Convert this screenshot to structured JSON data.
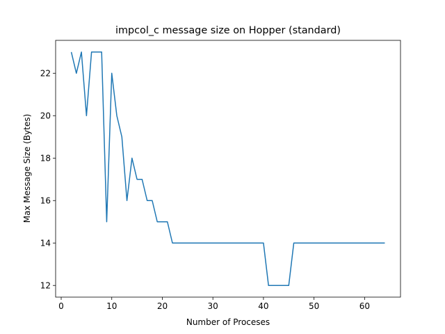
{
  "chart_data": {
    "type": "line",
    "title": "impcol_c message size on Hopper (standard)",
    "xlabel": "Number of Proceses",
    "ylabel": "Max Message Size (Bytes)",
    "xlim": [
      -1.1,
      67.1
    ],
    "ylim": [
      11.45,
      23.55
    ],
    "xticks": [
      0,
      10,
      20,
      30,
      40,
      50,
      60
    ],
    "yticks": [
      12,
      14,
      16,
      18,
      20,
      22
    ],
    "grid": false,
    "series": [
      {
        "color": "#1f77b4",
        "x": [
          2,
          3,
          4,
          5,
          6,
          7,
          8,
          9,
          10,
          11,
          12,
          13,
          14,
          15,
          16,
          17,
          18,
          19,
          20,
          21,
          22,
          23,
          24,
          25,
          26,
          27,
          28,
          29,
          30,
          31,
          32,
          33,
          34,
          35,
          36,
          37,
          38,
          39,
          40,
          41,
          42,
          43,
          44,
          45,
          46,
          47,
          48,
          49,
          50,
          51,
          52,
          53,
          54,
          55,
          56,
          57,
          58,
          59,
          60,
          61,
          62,
          63,
          64
        ],
        "y": [
          23,
          22,
          23,
          20,
          23,
          23,
          23,
          15,
          22,
          20,
          19,
          16,
          18,
          17,
          17,
          16,
          16,
          15,
          15,
          15,
          14,
          14,
          14,
          14,
          14,
          14,
          14,
          14,
          14,
          14,
          14,
          14,
          14,
          14,
          14,
          14,
          14,
          14,
          14,
          12,
          12,
          12,
          12,
          12,
          14,
          14,
          14,
          14,
          14,
          14,
          14,
          14,
          14,
          14,
          14,
          14,
          14,
          14,
          14,
          14,
          14,
          14,
          14
        ]
      }
    ]
  }
}
